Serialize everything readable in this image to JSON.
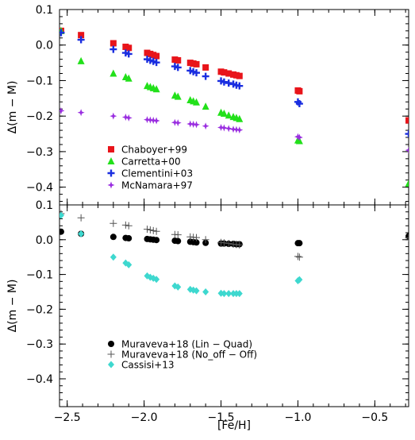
{
  "chart_data": [
    {
      "type": "scatter",
      "panel": "top",
      "xlabel": "",
      "ylabel": "Δ(m − M)",
      "xlim": [
        -2.55,
        -0.28
      ],
      "ylim": [
        -0.45,
        0.1
      ],
      "xticks": [
        -2.5,
        -2.0,
        -1.5,
        -1.0,
        -0.5
      ],
      "xtick_labels": [
        "",
        "",
        "",
        "",
        ""
      ],
      "yticks": [
        0.1,
        0.0,
        -0.1,
        -0.2,
        -0.3,
        -0.4
      ],
      "ytick_labels": [
        "0.1",
        "0.0",
        "−0.1",
        "−0.2",
        "−0.3",
        "−0.4"
      ],
      "legend_position": "lower-left",
      "series": [
        {
          "name": "Chaboyer+99",
          "marker": "square",
          "color": "#e8141a",
          "x": [
            -2.54,
            -2.41,
            -2.2,
            -2.12,
            -2.1,
            -1.98,
            -1.96,
            -1.94,
            -1.92,
            -1.8,
            -1.78,
            -1.7,
            -1.68,
            -1.66,
            -1.6,
            -1.5,
            -1.48,
            -1.45,
            -1.42,
            -1.4,
            -1.38,
            -1.0,
            -0.99,
            -0.28
          ],
          "y": [
            0.04,
            0.028,
            0.005,
            -0.005,
            -0.008,
            -0.022,
            -0.025,
            -0.028,
            -0.031,
            -0.041,
            -0.043,
            -0.05,
            -0.052,
            -0.054,
            -0.063,
            -0.075,
            -0.077,
            -0.08,
            -0.083,
            -0.085,
            -0.087,
            -0.128,
            -0.13,
            -0.212
          ]
        },
        {
          "name": "Carretta+00",
          "marker": "triangle",
          "color": "#22e01a",
          "x": [
            -2.54,
            -2.41,
            -2.2,
            -2.12,
            -2.1,
            -1.98,
            -1.96,
            -1.94,
            -1.92,
            -1.8,
            -1.78,
            -1.7,
            -1.68,
            -1.66,
            -1.6,
            -1.5,
            -1.48,
            -1.45,
            -1.42,
            -1.4,
            -1.38,
            -1.0,
            -0.99,
            -0.28
          ],
          "y": [
            0.04,
            -0.045,
            -0.08,
            -0.09,
            -0.094,
            -0.115,
            -0.118,
            -0.121,
            -0.124,
            -0.142,
            -0.145,
            -0.155,
            -0.158,
            -0.161,
            -0.173,
            -0.19,
            -0.193,
            -0.198,
            -0.202,
            -0.205,
            -0.208,
            -0.268,
            -0.27,
            -0.39
          ]
        },
        {
          "name": "Clementini+03",
          "marker": "plus",
          "color": "#1a2ee0",
          "x": [
            -2.54,
            -2.41,
            -2.2,
            -2.12,
            -2.1,
            -1.98,
            -1.96,
            -1.94,
            -1.92,
            -1.8,
            -1.78,
            -1.7,
            -1.68,
            -1.66,
            -1.6,
            -1.5,
            -1.48,
            -1.45,
            -1.42,
            -1.4,
            -1.38,
            -1.0,
            -0.99,
            -0.28
          ],
          "y": [
            0.035,
            0.015,
            -0.012,
            -0.022,
            -0.025,
            -0.04,
            -0.043,
            -0.046,
            -0.049,
            -0.06,
            -0.063,
            -0.072,
            -0.075,
            -0.078,
            -0.088,
            -0.101,
            -0.104,
            -0.107,
            -0.11,
            -0.113,
            -0.115,
            -0.16,
            -0.165,
            -0.25
          ]
        },
        {
          "name": "McNamara+97",
          "marker": "star",
          "color": "#9a2ee0",
          "x": [
            -2.54,
            -2.41,
            -2.2,
            -2.12,
            -2.1,
            -1.98,
            -1.96,
            -1.94,
            -1.92,
            -1.8,
            -1.78,
            -1.7,
            -1.68,
            -1.66,
            -1.6,
            -1.5,
            -1.48,
            -1.45,
            -1.42,
            -1.4,
            -1.38,
            -1.0,
            -0.99,
            -0.28
          ],
          "y": [
            -0.185,
            -0.19,
            -0.2,
            -0.203,
            -0.205,
            -0.21,
            -0.211,
            -0.212,
            -0.213,
            -0.218,
            -0.219,
            -0.222,
            -0.223,
            -0.224,
            -0.228,
            -0.232,
            -0.233,
            -0.235,
            -0.237,
            -0.238,
            -0.239,
            -0.258,
            -0.26,
            -0.296
          ]
        }
      ]
    },
    {
      "type": "scatter",
      "panel": "bottom",
      "xlabel": "[Fe/H]",
      "ylabel": "Δ(m − M)",
      "xlim": [
        -2.55,
        -0.28
      ],
      "ylim": [
        -0.48,
        0.1
      ],
      "xticks": [
        -2.5,
        -2.0,
        -1.5,
        -1.0,
        -0.5
      ],
      "xtick_labels": [
        "−2.5",
        "−2.0",
        "−1.5",
        "−1.0",
        "−0.5"
      ],
      "yticks": [
        0.1,
        0.0,
        -0.1,
        -0.2,
        -0.3,
        -0.4
      ],
      "ytick_labels": [
        "0.1",
        "0.0",
        "−0.1",
        "−0.2",
        "−0.3",
        "−0.4"
      ],
      "legend_position": "lower-left",
      "series": [
        {
          "name": "Muraveva+18 (Lin − Quad)",
          "marker": "circle",
          "color": "#000000",
          "x": [
            -2.54,
            -2.41,
            -2.2,
            -2.12,
            -2.1,
            -1.98,
            -1.96,
            -1.94,
            -1.92,
            -1.8,
            -1.78,
            -1.7,
            -1.68,
            -1.66,
            -1.6,
            -1.5,
            -1.48,
            -1.45,
            -1.42,
            -1.4,
            -1.38,
            -1.0,
            -0.99,
            -0.28
          ],
          "y": [
            0.023,
            0.017,
            0.008,
            0.005,
            0.004,
            0.002,
            0.001,
            0.0,
            -0.001,
            -0.003,
            -0.004,
            -0.006,
            -0.007,
            -0.008,
            -0.009,
            -0.011,
            -0.011,
            -0.012,
            -0.012,
            -0.013,
            -0.013,
            -0.01,
            -0.01,
            0.01
          ]
        },
        {
          "name": "Muraveva+18 (No_off − Off)",
          "marker": "thin-plus",
          "color": "#555555",
          "x": [
            -2.54,
            -2.41,
            -2.2,
            -2.12,
            -2.1,
            -1.98,
            -1.96,
            -1.94,
            -1.92,
            -1.8,
            -1.78,
            -1.7,
            -1.68,
            -1.66,
            -1.6,
            -1.5,
            -1.48,
            -1.45,
            -1.42,
            -1.4,
            -1.38,
            -1.0,
            -0.99,
            -0.28
          ],
          "y": [
            0.075,
            0.063,
            0.047,
            0.042,
            0.04,
            0.03,
            0.028,
            0.026,
            0.024,
            0.015,
            0.014,
            0.008,
            0.007,
            0.006,
            0.0,
            -0.008,
            -0.009,
            -0.011,
            -0.013,
            -0.014,
            -0.015,
            -0.048,
            -0.05,
            0.005
          ]
        },
        {
          "name": "Cassisi+13",
          "marker": "diamond",
          "color": "#3ed8cf",
          "x": [
            -2.54,
            -2.41,
            -2.2,
            -2.12,
            -2.1,
            -1.98,
            -1.96,
            -1.94,
            -1.92,
            -1.8,
            -1.78,
            -1.7,
            -1.68,
            -1.66,
            -1.6,
            -1.5,
            -1.48,
            -1.45,
            -1.42,
            -1.4,
            -1.38,
            -1.0,
            -0.99
          ],
          "y": [
            0.07,
            0.017,
            -0.05,
            -0.067,
            -0.072,
            -0.104,
            -0.108,
            -0.111,
            -0.114,
            -0.133,
            -0.136,
            -0.143,
            -0.145,
            -0.147,
            -0.15,
            -0.154,
            -0.155,
            -0.155,
            -0.155,
            -0.155,
            -0.155,
            -0.118,
            -0.115
          ]
        }
      ]
    }
  ]
}
